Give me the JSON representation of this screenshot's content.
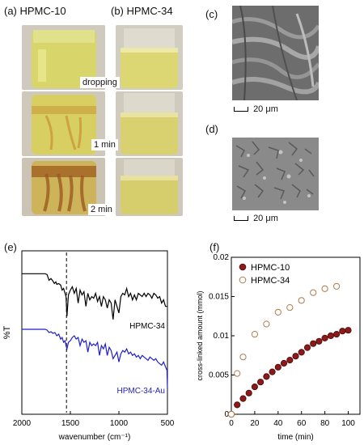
{
  "panels": {
    "a": {
      "label": "(a) HPMC-10"
    },
    "b": {
      "label": "(b) HPMC-34"
    },
    "c": {
      "label": "(c)",
      "scale": "20 μm"
    },
    "d": {
      "label": "(d)",
      "scale": "20 μm"
    },
    "e": {
      "label": "(e)"
    },
    "f": {
      "label": "(f)"
    }
  },
  "photo_captions": [
    "dropping",
    "1 min",
    "2 min"
  ],
  "chart_data": [
    {
      "type": "line",
      "ylabel": "%T",
      "xlabel": "wavenumber (cm⁻¹)",
      "xlim": [
        2000,
        500
      ],
      "xticks": [
        2000,
        1500,
        1000,
        500
      ],
      "reference_line_x": 1540,
      "series": [
        {
          "name": "HPMC-34",
          "color": "#000000",
          "x": [
            2000,
            1900,
            1800,
            1760,
            1740,
            1720,
            1700,
            1680,
            1665,
            1650,
            1640,
            1620,
            1600,
            1585,
            1570,
            1555,
            1545,
            1535,
            1520,
            1500,
            1480,
            1460,
            1440,
            1420,
            1400,
            1380,
            1360,
            1340,
            1320,
            1300,
            1280,
            1260,
            1240,
            1220,
            1200,
            1180,
            1160,
            1140,
            1120,
            1100,
            1080,
            1060,
            1040,
            1020,
            1000,
            980,
            960,
            940,
            920,
            900,
            880,
            860,
            840,
            820,
            800,
            780,
            760,
            740,
            720,
            700,
            680,
            660,
            640,
            620,
            600,
            580,
            560,
            540,
            520,
            500
          ],
          "y": [
            0.86,
            0.86,
            0.86,
            0.86,
            0.855,
            0.82,
            0.83,
            0.815,
            0.8,
            0.81,
            0.795,
            0.8,
            0.79,
            0.76,
            0.77,
            0.74,
            0.72,
            0.6,
            0.73,
            0.76,
            0.78,
            0.74,
            0.77,
            0.68,
            0.76,
            0.73,
            0.75,
            0.66,
            0.74,
            0.7,
            0.72,
            0.71,
            0.74,
            0.69,
            0.72,
            0.66,
            0.72,
            0.7,
            0.65,
            0.7,
            0.68,
            0.58,
            0.7,
            0.66,
            0.62,
            0.72,
            0.74,
            0.73,
            0.77,
            0.72,
            0.74,
            0.7,
            0.73,
            0.7,
            0.74,
            0.73,
            0.72,
            0.74,
            0.72,
            0.74,
            0.73,
            0.71,
            0.74,
            0.73,
            0.71,
            0.72,
            0.68,
            0.7,
            0.66,
            0.66
          ]
        },
        {
          "name": "HPMC-34-Au",
          "color": "#1f1fc8",
          "x": [
            2000,
            1900,
            1800,
            1760,
            1740,
            1720,
            1700,
            1680,
            1660,
            1640,
            1620,
            1600,
            1585,
            1570,
            1555,
            1545,
            1535,
            1520,
            1500,
            1480,
            1460,
            1440,
            1420,
            1400,
            1380,
            1360,
            1340,
            1320,
            1300,
            1280,
            1260,
            1240,
            1220,
            1200,
            1180,
            1160,
            1140,
            1120,
            1100,
            1080,
            1060,
            1040,
            1020,
            1000,
            980,
            960,
            940,
            920,
            900,
            880,
            860,
            840,
            820,
            800,
            780,
            760,
            740,
            720,
            700,
            680,
            660,
            640,
            620,
            600,
            580,
            560,
            540,
            520,
            505,
            500
          ],
          "y": [
            0.52,
            0.52,
            0.52,
            0.52,
            0.515,
            0.5,
            0.505,
            0.495,
            0.5,
            0.48,
            0.49,
            0.46,
            0.47,
            0.44,
            0.45,
            0.42,
            0.4,
            0.44,
            0.45,
            0.47,
            0.48,
            0.46,
            0.47,
            0.42,
            0.46,
            0.44,
            0.45,
            0.38,
            0.44,
            0.42,
            0.43,
            0.42,
            0.44,
            0.36,
            0.42,
            0.4,
            0.43,
            0.36,
            0.41,
            0.39,
            0.34,
            0.36,
            0.38,
            0.32,
            0.37,
            0.39,
            0.38,
            0.4,
            0.37,
            0.38,
            0.36,
            0.37,
            0.35,
            0.36,
            0.34,
            0.36,
            0.35,
            0.34,
            0.33,
            0.35,
            0.34,
            0.33,
            0.34,
            0.32,
            0.31,
            0.3,
            0.32,
            0.29,
            0.27,
            0.16
          ]
        }
      ]
    },
    {
      "type": "scatter",
      "xlabel": "time (min)",
      "ylabel": "cross-linked amount (mmol)",
      "xlim": [
        0,
        110
      ],
      "ylim": [
        0,
        0.02
      ],
      "xticks": [
        0,
        20,
        40,
        60,
        80,
        100
      ],
      "yticks": [
        "0",
        "0.005",
        "0.01",
        "0.015",
        "0.02"
      ],
      "legend": "top-left",
      "series": [
        {
          "name": "HPMC-10",
          "fill": "#8b1a1a",
          "stroke": "#5a1010",
          "x": [
            0,
            5,
            10,
            15,
            20,
            25,
            30,
            35,
            40,
            45,
            50,
            55,
            60,
            65,
            70,
            75,
            80,
            85,
            90,
            95,
            100
          ],
          "y": [
            0,
            0.0012,
            0.002,
            0.0027,
            0.0035,
            0.0041,
            0.0048,
            0.0054,
            0.006,
            0.0065,
            0.0069,
            0.0074,
            0.0079,
            0.0085,
            0.009,
            0.0093,
            0.0097,
            0.01,
            0.0102,
            0.0106,
            0.0107
          ]
        },
        {
          "name": "HPMC-34",
          "fill": "#ffffff",
          "stroke": "#b07a4a",
          "x": [
            0,
            5,
            10,
            20,
            30,
            40,
            50,
            60,
            70,
            80,
            90
          ],
          "y": [
            0,
            0.0052,
            0.0073,
            0.0102,
            0.0115,
            0.013,
            0.0136,
            0.0145,
            0.0155,
            0.016,
            0.0163
          ]
        }
      ]
    }
  ]
}
